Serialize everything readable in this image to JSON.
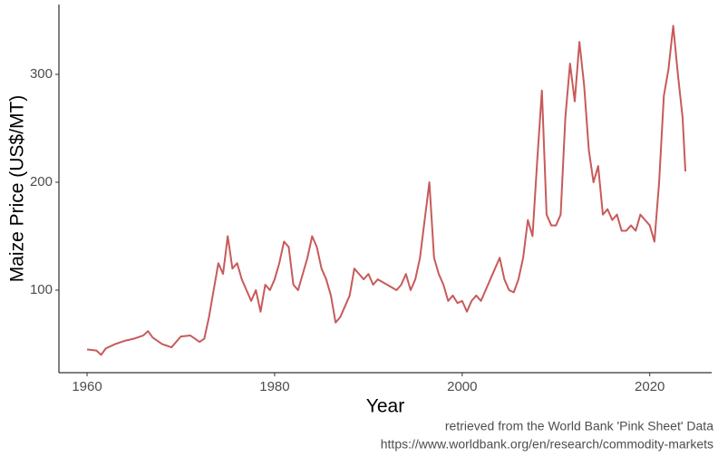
{
  "chart_data": {
    "type": "line",
    "xlabel": "Year",
    "ylabel": "Maize Price (US$/MT)",
    "caption": [
      "retrieved from the World Bank 'Pink Sheet' Data",
      "https://www.worldbank.org/en/research/commodity-markets"
    ],
    "x": [
      1960,
      1961,
      1961.5,
      1962,
      1963,
      1964,
      1965,
      1966,
      1966.5,
      1967,
      1968,
      1969,
      1970,
      1971,
      1972,
      1972.5,
      1973,
      1973.5,
      1974,
      1974.5,
      1975,
      1975.5,
      1976,
      1976.5,
      1977,
      1977.5,
      1978,
      1978.5,
      1979,
      1979.5,
      1980,
      1980.5,
      1981,
      1981.5,
      1982,
      1982.5,
      1983,
      1983.5,
      1984,
      1984.5,
      1985,
      1985.5,
      1986,
      1986.5,
      1987,
      1987.5,
      1988,
      1988.5,
      1989,
      1989.5,
      1990,
      1990.5,
      1991,
      1992,
      1993,
      1993.5,
      1994,
      1994.5,
      1995,
      1995.5,
      1996,
      1996.5,
      1997,
      1997.5,
      1998,
      1998.5,
      1999,
      1999.5,
      2000,
      2000.5,
      2001,
      2001.5,
      2002,
      2002.5,
      2003,
      2004,
      2004.5,
      2005,
      2005.5,
      2006,
      2006.5,
      2007,
      2007.5,
      2008,
      2008.5,
      2009,
      2009.5,
      2010,
      2010.5,
      2011,
      2011.5,
      2012,
      2012.5,
      2013,
      2013.5,
      2014,
      2014.5,
      2015,
      2015.5,
      2016,
      2016.5,
      2017,
      2017.5,
      2018,
      2018.5,
      2019,
      2019.5,
      2020,
      2020.5,
      2021,
      2021.5,
      2022,
      2022.5,
      2023,
      2023.5,
      2023.8
    ],
    "series": [
      {
        "name": "Maize",
        "color": "#c85a5a",
        "values": [
          45,
          44,
          40,
          46,
          50,
          53,
          55,
          58,
          62,
          56,
          50,
          47,
          57,
          58,
          52,
          55,
          75,
          100,
          125,
          115,
          150,
          120,
          125,
          110,
          100,
          90,
          100,
          80,
          105,
          100,
          110,
          125,
          145,
          140,
          105,
          100,
          115,
          130,
          150,
          140,
          120,
          110,
          95,
          70,
          75,
          85,
          95,
          120,
          115,
          110,
          115,
          105,
          110,
          105,
          100,
          105,
          115,
          100,
          110,
          130,
          165,
          200,
          130,
          115,
          105,
          90,
          95,
          88,
          90,
          80,
          90,
          95,
          90,
          100,
          110,
          130,
          110,
          100,
          98,
          110,
          130,
          165,
          150,
          220,
          285,
          170,
          160,
          160,
          170,
          260,
          310,
          275,
          330,
          290,
          230,
          200,
          215,
          170,
          175,
          165,
          170,
          155,
          155,
          160,
          155,
          170,
          165,
          160,
          145,
          200,
          280,
          305,
          345,
          300,
          260,
          210
        ]
      }
    ],
    "xlim": [
      1957,
      2026.6
    ],
    "xticks": [
      1960,
      1980,
      2000,
      2020
    ],
    "ylim": [
      23.5,
      364.7
    ],
    "yticks": [
      100,
      200,
      300
    ],
    "grid": false
  }
}
